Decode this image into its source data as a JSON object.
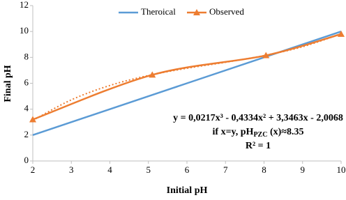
{
  "chart_data": {
    "type": "line",
    "x_label": "Initial pH",
    "y_label": "Final pH",
    "xlim": [
      2,
      10
    ],
    "xticks": [
      2,
      3,
      4,
      5,
      6,
      7,
      8,
      9,
      10
    ],
    "ylim": [
      0,
      12
    ],
    "yticks": [
      0,
      2,
      4,
      6,
      8,
      10,
      12
    ],
    "series": [
      {
        "name": "Theroical",
        "color": "#5b9bd5",
        "x": [
          2,
          10
        ],
        "values": [
          2,
          10
        ],
        "marker": "none"
      },
      {
        "name": "Observed",
        "color": "#ed7d31",
        "x": [
          2,
          5.1,
          8.05,
          10
        ],
        "values": [
          3.2,
          6.65,
          8.15,
          9.8
        ],
        "marker": "triangle"
      }
    ],
    "trendline": {
      "color": "#ed7d31",
      "x": [
        2,
        3,
        4,
        5,
        6,
        7,
        8,
        9,
        10
      ],
      "values": [
        3.13,
        4.72,
        5.83,
        6.6,
        7.16,
        7.62,
        8.14,
        8.82,
        9.82
      ]
    },
    "annotation": {
      "equation": "y = 0,0217x³ - 0,4334x² + 3,3463x - 2,0068",
      "pzc": [
        "if x=y, pH",
        "PZC",
        " (x)≈8.35"
      ],
      "r2": "R² = 1"
    }
  }
}
